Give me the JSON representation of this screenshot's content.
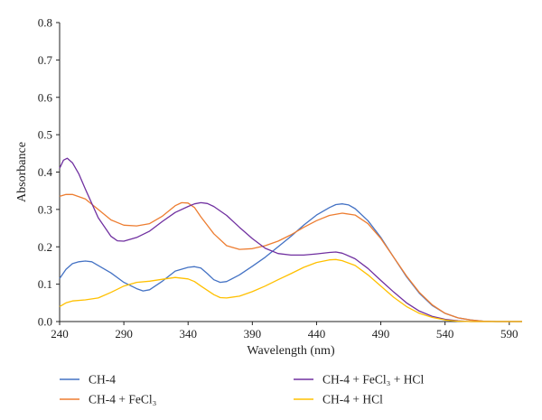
{
  "chart_data": {
    "type": "line",
    "title": "",
    "xlabel": "Wavelength (nm)",
    "ylabel": "Absorbance",
    "xlim": [
      240,
      600
    ],
    "ylim": [
      0,
      0.8
    ],
    "xticks": [
      240,
      290,
      340,
      390,
      440,
      490,
      540,
      590
    ],
    "xtick_labels": [
      "240",
      "290",
      "340",
      "390",
      "440",
      "490",
      "540",
      "590"
    ],
    "yticks": [
      0,
      0.1,
      0.2,
      0.3,
      0.4,
      0.5,
      0.6,
      0.7,
      0.8
    ],
    "ytick_labels": [
      "0.0",
      "0.1",
      "0.2",
      "0.3",
      "0.4",
      "0.5",
      "0.6",
      "0.7",
      "0.8"
    ],
    "grid": false,
    "legend_position": "bottom",
    "series": [
      {
        "name": "CH-4",
        "color": "#4472c4",
        "points": [
          [
            240,
            0.115
          ],
          [
            245,
            0.14
          ],
          [
            250,
            0.155
          ],
          [
            255,
            0.16
          ],
          [
            260,
            0.162
          ],
          [
            265,
            0.16
          ],
          [
            270,
            0.15
          ],
          [
            280,
            0.13
          ],
          [
            290,
            0.105
          ],
          [
            300,
            0.088
          ],
          [
            305,
            0.082
          ],
          [
            310,
            0.085
          ],
          [
            320,
            0.108
          ],
          [
            330,
            0.135
          ],
          [
            340,
            0.145
          ],
          [
            345,
            0.147
          ],
          [
            350,
            0.143
          ],
          [
            355,
            0.128
          ],
          [
            360,
            0.112
          ],
          [
            365,
            0.105
          ],
          [
            370,
            0.107
          ],
          [
            380,
            0.125
          ],
          [
            390,
            0.148
          ],
          [
            400,
            0.172
          ],
          [
            410,
            0.2
          ],
          [
            420,
            0.228
          ],
          [
            430,
            0.258
          ],
          [
            440,
            0.285
          ],
          [
            450,
            0.305
          ],
          [
            455,
            0.313
          ],
          [
            460,
            0.315
          ],
          [
            465,
            0.312
          ],
          [
            470,
            0.302
          ],
          [
            480,
            0.27
          ],
          [
            490,
            0.225
          ],
          [
            500,
            0.172
          ],
          [
            510,
            0.12
          ],
          [
            520,
            0.076
          ],
          [
            530,
            0.043
          ],
          [
            540,
            0.022
          ],
          [
            550,
            0.01
          ],
          [
            560,
            0.004
          ],
          [
            570,
            0.001
          ],
          [
            580,
            0.0
          ],
          [
            600,
            0.0
          ]
        ]
      },
      {
        "name": "CH-4 + FeCl₃",
        "color": "#ed7d31",
        "points": [
          [
            240,
            0.335
          ],
          [
            245,
            0.34
          ],
          [
            250,
            0.34
          ],
          [
            260,
            0.328
          ],
          [
            270,
            0.3
          ],
          [
            280,
            0.272
          ],
          [
            290,
            0.258
          ],
          [
            300,
            0.256
          ],
          [
            310,
            0.262
          ],
          [
            320,
            0.282
          ],
          [
            330,
            0.31
          ],
          [
            335,
            0.318
          ],
          [
            340,
            0.317
          ],
          [
            345,
            0.305
          ],
          [
            350,
            0.28
          ],
          [
            360,
            0.235
          ],
          [
            370,
            0.203
          ],
          [
            380,
            0.193
          ],
          [
            390,
            0.195
          ],
          [
            400,
            0.203
          ],
          [
            410,
            0.215
          ],
          [
            420,
            0.232
          ],
          [
            430,
            0.252
          ],
          [
            440,
            0.27
          ],
          [
            450,
            0.284
          ],
          [
            460,
            0.29
          ],
          [
            470,
            0.285
          ],
          [
            480,
            0.262
          ],
          [
            490,
            0.222
          ],
          [
            500,
            0.172
          ],
          [
            510,
            0.122
          ],
          [
            520,
            0.078
          ],
          [
            530,
            0.045
          ],
          [
            540,
            0.022
          ],
          [
            550,
            0.01
          ],
          [
            560,
            0.004
          ],
          [
            570,
            0.001
          ],
          [
            580,
            0.0
          ],
          [
            600,
            0.0
          ]
        ]
      },
      {
        "name": "CH-4 + FeCl₃ + HCl",
        "color": "#7030a0",
        "points": [
          [
            240,
            0.41
          ],
          [
            243,
            0.432
          ],
          [
            246,
            0.437
          ],
          [
            250,
            0.425
          ],
          [
            255,
            0.395
          ],
          [
            260,
            0.355
          ],
          [
            270,
            0.278
          ],
          [
            280,
            0.228
          ],
          [
            285,
            0.216
          ],
          [
            290,
            0.215
          ],
          [
            300,
            0.225
          ],
          [
            310,
            0.242
          ],
          [
            320,
            0.268
          ],
          [
            330,
            0.292
          ],
          [
            340,
            0.308
          ],
          [
            345,
            0.315
          ],
          [
            350,
            0.318
          ],
          [
            355,
            0.316
          ],
          [
            360,
            0.308
          ],
          [
            370,
            0.284
          ],
          [
            380,
            0.252
          ],
          [
            390,
            0.222
          ],
          [
            400,
            0.196
          ],
          [
            410,
            0.182
          ],
          [
            420,
            0.178
          ],
          [
            430,
            0.178
          ],
          [
            440,
            0.181
          ],
          [
            450,
            0.185
          ],
          [
            455,
            0.186
          ],
          [
            460,
            0.183
          ],
          [
            470,
            0.168
          ],
          [
            480,
            0.142
          ],
          [
            490,
            0.11
          ],
          [
            500,
            0.079
          ],
          [
            510,
            0.05
          ],
          [
            520,
            0.028
          ],
          [
            530,
            0.014
          ],
          [
            540,
            0.006
          ],
          [
            550,
            0.002
          ],
          [
            560,
            0.0
          ],
          [
            600,
            0.0
          ]
        ]
      },
      {
        "name": "CH-4 + HCl",
        "color": "#ffc000",
        "points": [
          [
            240,
            0.04
          ],
          [
            245,
            0.05
          ],
          [
            250,
            0.055
          ],
          [
            260,
            0.058
          ],
          [
            270,
            0.063
          ],
          [
            280,
            0.078
          ],
          [
            290,
            0.095
          ],
          [
            300,
            0.105
          ],
          [
            310,
            0.108
          ],
          [
            320,
            0.113
          ],
          [
            330,
            0.118
          ],
          [
            340,
            0.114
          ],
          [
            345,
            0.107
          ],
          [
            350,
            0.095
          ],
          [
            360,
            0.072
          ],
          [
            365,
            0.064
          ],
          [
            370,
            0.063
          ],
          [
            380,
            0.068
          ],
          [
            390,
            0.08
          ],
          [
            400,
            0.095
          ],
          [
            410,
            0.112
          ],
          [
            420,
            0.128
          ],
          [
            430,
            0.145
          ],
          [
            440,
            0.158
          ],
          [
            450,
            0.165
          ],
          [
            455,
            0.166
          ],
          [
            460,
            0.163
          ],
          [
            470,
            0.15
          ],
          [
            480,
            0.125
          ],
          [
            490,
            0.095
          ],
          [
            500,
            0.065
          ],
          [
            510,
            0.04
          ],
          [
            520,
            0.022
          ],
          [
            530,
            0.011
          ],
          [
            540,
            0.004
          ],
          [
            550,
            0.001
          ],
          [
            560,
            0.0
          ],
          [
            600,
            0.0
          ]
        ]
      }
    ]
  }
}
